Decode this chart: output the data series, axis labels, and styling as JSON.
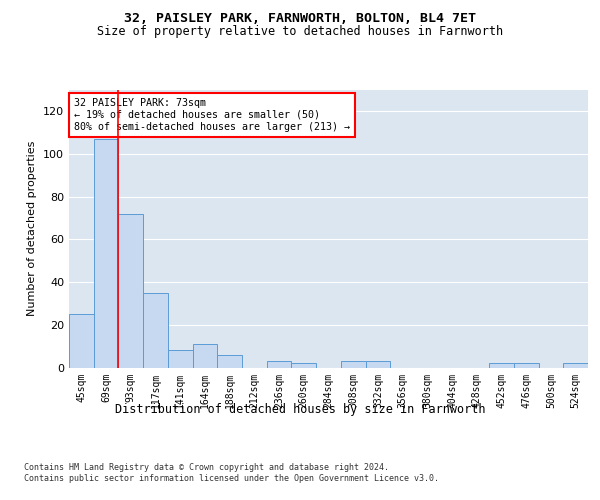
{
  "title1": "32, PAISLEY PARK, FARNWORTH, BOLTON, BL4 7ET",
  "title2": "Size of property relative to detached houses in Farnworth",
  "xlabel": "Distribution of detached houses by size in Farnworth",
  "ylabel": "Number of detached properties",
  "footnote1": "Contains HM Land Registry data © Crown copyright and database right 2024.",
  "footnote2": "Contains public sector information licensed under the Open Government Licence v3.0.",
  "annotation_line1": "32 PAISLEY PARK: 73sqm",
  "annotation_line2": "← 19% of detached houses are smaller (50)",
  "annotation_line3": "80% of semi-detached houses are larger (213) →",
  "bar_color": "#c6d9f0",
  "bar_edge_color": "#5b9bd5",
  "redline_color": "#ff0000",
  "background_color": "#ffffff",
  "plot_bg_color": "#dce6f1",
  "grid_color": "#ffffff",
  "categories": [
    "45sqm",
    "69sqm",
    "93sqm",
    "117sqm",
    "141sqm",
    "164sqm",
    "188sqm",
    "212sqm",
    "236sqm",
    "260sqm",
    "284sqm",
    "308sqm",
    "332sqm",
    "356sqm",
    "380sqm",
    "404sqm",
    "428sqm",
    "452sqm",
    "476sqm",
    "500sqm",
    "524sqm"
  ],
  "values": [
    25,
    107,
    72,
    35,
    8,
    11,
    6,
    0,
    3,
    2,
    0,
    3,
    3,
    0,
    0,
    0,
    0,
    2,
    2,
    0,
    2
  ],
  "ylim": [
    0,
    130
  ],
  "yticks": [
    0,
    20,
    40,
    60,
    80,
    100,
    120
  ],
  "redline_x": 1.5
}
